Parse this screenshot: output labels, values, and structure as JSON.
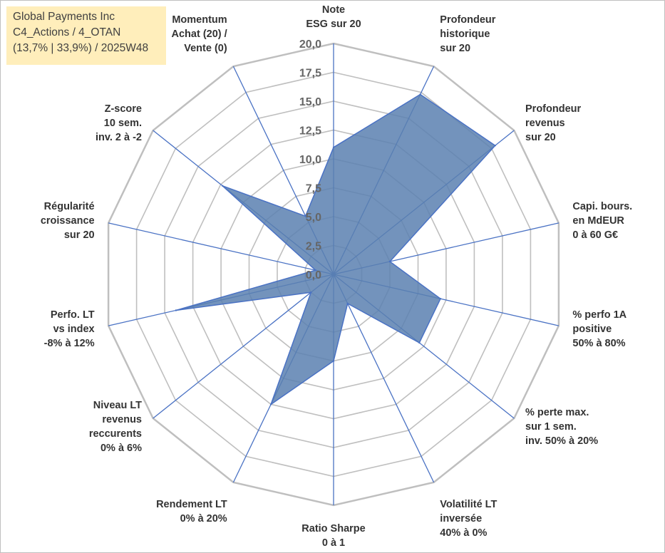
{
  "header": {
    "company": "Global Payments Inc",
    "line2": "C4_Actions / 4_OTAN",
    "line3": "(13,7% | 33,9%) / 2025W48"
  },
  "colors": {
    "fill": "#5b80b0",
    "stroke": "#4a72c4",
    "grid": "#bfbfbf",
    "spoke": "#4a72c4",
    "header_bg": "#ffeebb"
  },
  "chart_data": {
    "type": "radar",
    "title": "",
    "rmin": 0,
    "rmax": 20,
    "tick_step": 2.5,
    "tick_labels": [
      "0,0",
      "2,5",
      "5,0",
      "7,5",
      "10,0",
      "12,5",
      "15,0",
      "17,5",
      "20,0"
    ],
    "axes": [
      {
        "label": [
          "Note",
          "ESG sur 20"
        ],
        "value": 11
      },
      {
        "label": [
          "Profondeur",
          "historique",
          "sur 20"
        ],
        "value": 17.3
      },
      {
        "label": [
          "Profondeur",
          "revenus",
          "sur 20"
        ],
        "value": 17.9
      },
      {
        "label": [
          "Capi. bours.",
          "en MdEUR",
          "0 à 60 G€"
        ],
        "value": 5
      },
      {
        "label": [
          "% perfo 1A",
          "positive",
          "50% à 80%"
        ],
        "value": 9.5
      },
      {
        "label": [
          "% perte max.",
          "sur 1 sem.",
          "inv. 50% à 20%"
        ],
        "value": 9.5
      },
      {
        "label": [
          "Volatilité LT",
          "inversée",
          "40% à 0%"
        ],
        "value": 2.8
      },
      {
        "label": [
          "Ratio Sharpe",
          "0 à 1"
        ],
        "value": 7.5
      },
      {
        "label": [
          "Rendement LT",
          "0% à 20%"
        ],
        "value": 12.5
      },
      {
        "label": [
          "Niveau LT",
          "revenus",
          "reccurents",
          "0% à 6%"
        ],
        "value": 2.5
      },
      {
        "label": [
          "Perfo. LT",
          "vs index",
          "-8% à 12%"
        ],
        "value": 14
      },
      {
        "label": [
          "Régularité",
          "croissance",
          "sur 20"
        ],
        "value": 1.6
      },
      {
        "label": [
          "Z-score",
          "10 sem.",
          "inv. 2 à -2"
        ],
        "value": 12.3
      },
      {
        "label": [
          "Momentum",
          "Achat (20) /",
          "Vente (0)"
        ],
        "value": 5.6
      }
    ]
  }
}
